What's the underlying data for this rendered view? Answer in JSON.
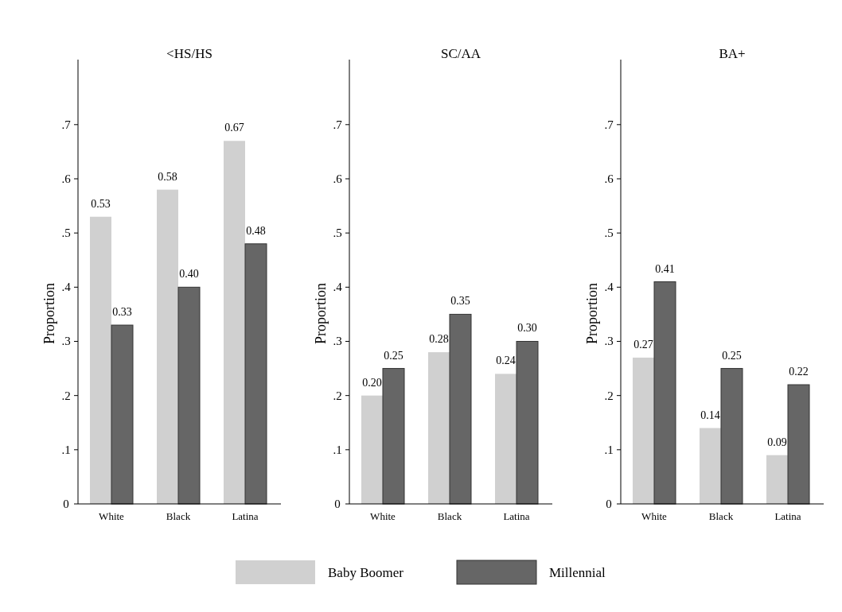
{
  "chart_data": [
    {
      "type": "bar",
      "title": "<HS/HS",
      "ylabel": "Proportion",
      "categories": [
        "White",
        "Black",
        "Latina"
      ],
      "ylim": [
        0,
        0.82
      ],
      "yticks": [
        {
          "value": 0,
          "label": "0"
        },
        {
          "value": 0.1,
          "label": ".1"
        },
        {
          "value": 0.2,
          "label": ".2"
        },
        {
          "value": 0.3,
          "label": ".3"
        },
        {
          "value": 0.4,
          "label": ".4"
        },
        {
          "value": 0.5,
          "label": ".5"
        },
        {
          "value": 0.6,
          "label": ".6"
        },
        {
          "value": 0.7,
          "label": ".7"
        }
      ],
      "grid": false,
      "legend": "bottom",
      "series": [
        {
          "name": "Baby Boomer",
          "color": "#d0d0d0",
          "values": [
            0.53,
            0.58,
            0.67
          ],
          "value_labels": [
            "0.53",
            "0.58",
            "0.67"
          ]
        },
        {
          "name": "Millennial",
          "color": "#666666",
          "values": [
            0.33,
            0.4,
            0.48
          ],
          "value_labels": [
            "0.33",
            "0.40",
            "0.48"
          ]
        }
      ]
    },
    {
      "type": "bar",
      "title": "SC/AA",
      "ylabel": "Proportion",
      "categories": [
        "White",
        "Black",
        "Latina"
      ],
      "ylim": [
        0,
        0.82
      ],
      "yticks": [
        {
          "value": 0,
          "label": "0"
        },
        {
          "value": 0.1,
          "label": ".1"
        },
        {
          "value": 0.2,
          "label": ".2"
        },
        {
          "value": 0.3,
          "label": ".3"
        },
        {
          "value": 0.4,
          "label": ".4"
        },
        {
          "value": 0.5,
          "label": ".5"
        },
        {
          "value": 0.6,
          "label": ".6"
        },
        {
          "value": 0.7,
          "label": ".7"
        }
      ],
      "grid": false,
      "series": [
        {
          "color": "#d0d0d0",
          "values": [
            0.2,
            0.28,
            0.24
          ],
          "value_labels": [
            "0.20",
            "0.28",
            "0.24"
          ]
        },
        {
          "color": "#666666",
          "values": [
            0.25,
            0.35,
            0.3
          ],
          "value_labels": [
            "0.25",
            "0.35",
            "0.30"
          ]
        }
      ]
    },
    {
      "type": "bar",
      "title": "BA+",
      "ylabel": "Proportion",
      "categories": [
        "White",
        "Black",
        "Latina"
      ],
      "ylim": [
        0,
        0.82
      ],
      "yticks": [
        {
          "value": 0,
          "label": "0"
        },
        {
          "value": 0.1,
          "label": ".1"
        },
        {
          "value": 0.2,
          "label": ".2"
        },
        {
          "value": 0.3,
          "label": ".3"
        },
        {
          "value": 0.4,
          "label": ".4"
        },
        {
          "value": 0.5,
          "label": ".5"
        },
        {
          "value": 0.6,
          "label": ".6"
        },
        {
          "value": 0.7,
          "label": ".7"
        }
      ],
      "grid": false,
      "series": [
        {
          "color": "#d0d0d0",
          "values": [
            0.27,
            0.14,
            0.09
          ],
          "value_labels": [
            "0.27",
            "0.14",
            "0.09"
          ]
        },
        {
          "color": "#666666",
          "values": [
            0.41,
            0.25,
            0.22
          ],
          "value_labels": [
            "0.41",
            "0.25",
            "0.22"
          ]
        }
      ]
    }
  ]
}
